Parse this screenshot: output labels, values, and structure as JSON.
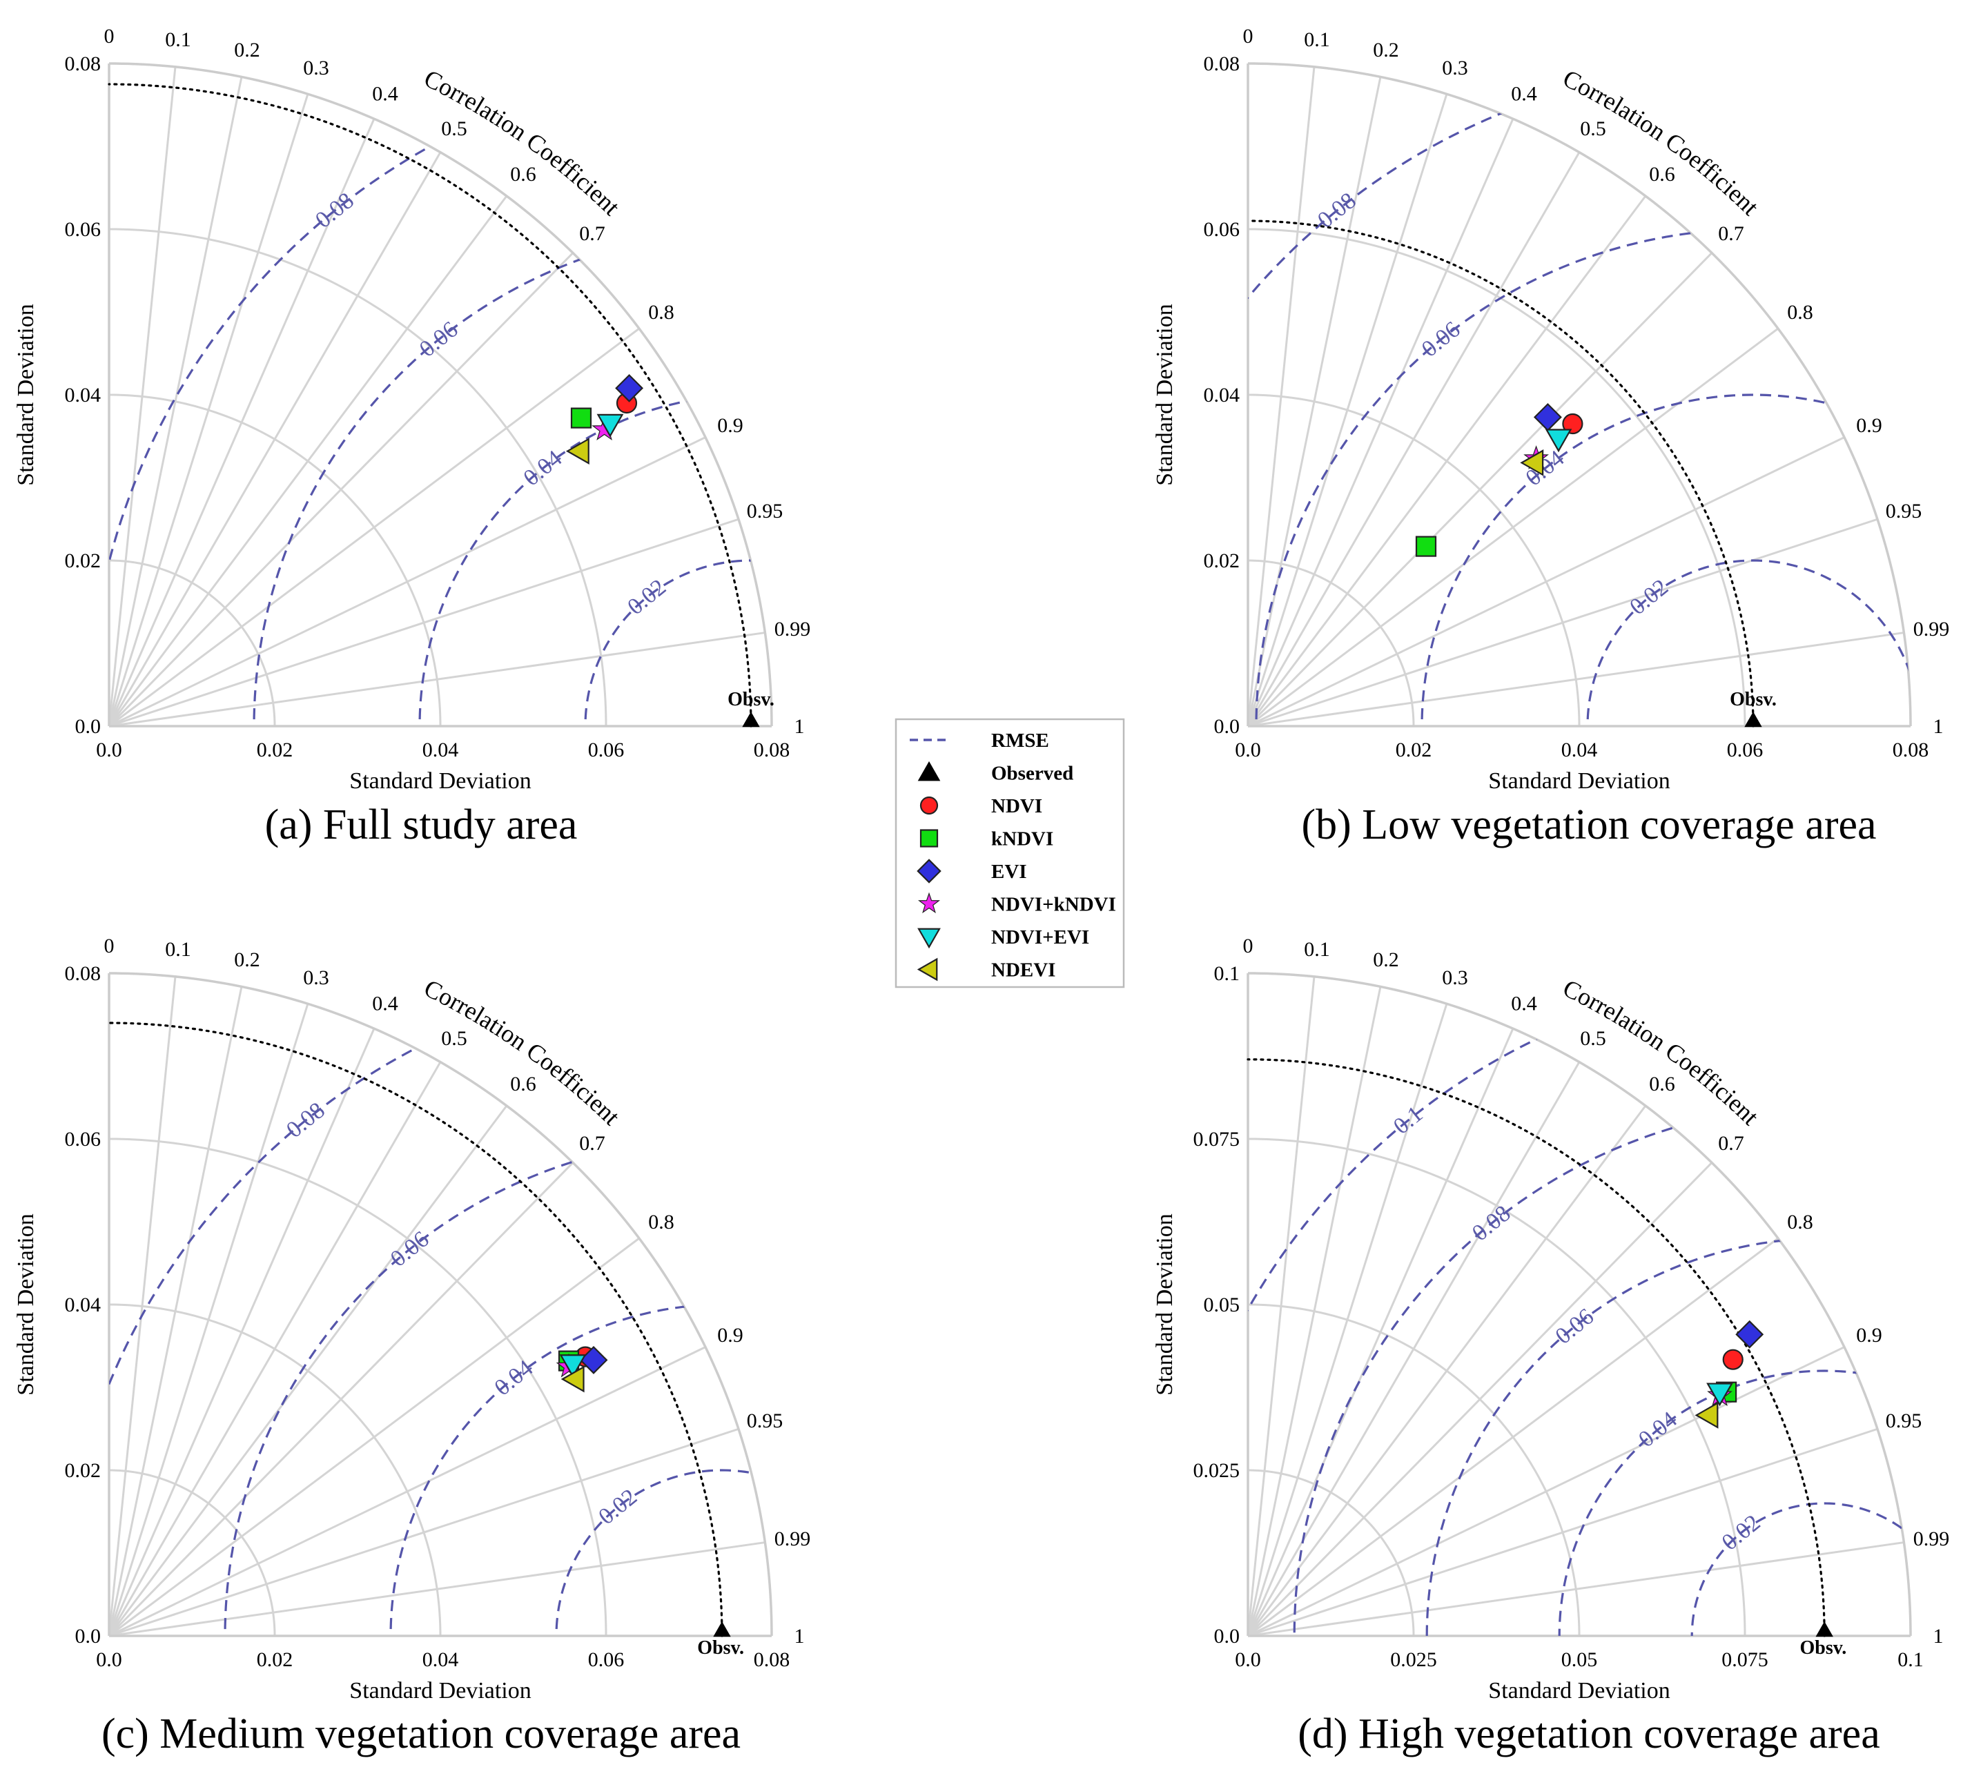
{
  "legend": {
    "items": [
      {
        "label": "RMSE",
        "kind": "line",
        "color": "#5555aa"
      },
      {
        "label": "Observed",
        "kind": "triangle-up",
        "color": "#000000"
      },
      {
        "label": "NDVI",
        "kind": "circle",
        "color": "#ff2020"
      },
      {
        "label": "kNDVI",
        "kind": "square",
        "color": "#11dd11"
      },
      {
        "label": "EVI",
        "kind": "diamond",
        "color": "#3030dd"
      },
      {
        "label": "NDVI+kNDVI",
        "kind": "star",
        "color": "#ee22ee"
      },
      {
        "label": "NDVI+EVI",
        "kind": "triangle-down",
        "color": "#11dddd"
      },
      {
        "label": "NDEVI",
        "kind": "triangle-left",
        "color": "#cccc11"
      }
    ]
  },
  "colors": {
    "rmse": "#5555aa",
    "grid": "#d4d4d4",
    "frame": "#cccccc",
    "observed_arc": "#000000"
  },
  "chart_data": [
    {
      "type": "taylor",
      "title": "(a) Full study area",
      "xlabel": "Standard Deviation",
      "ylabel": "Standard Deviation",
      "corr_label": "Correlation Coefficient",
      "max_sd": 0.08,
      "sd_ticks": [
        0.0,
        0.02,
        0.04,
        0.06,
        0.08
      ],
      "sd_tick_labels": [
        "0.0",
        "0.02",
        "0.04",
        "0.06",
        "0.08"
      ],
      "corr_ticks": [
        0,
        0.1,
        0.2,
        0.3,
        0.4,
        0.5,
        0.6,
        0.7,
        0.8,
        0.9,
        0.95,
        0.99,
        1
      ],
      "corr_tick_labels": [
        "0",
        "0.1",
        "0.2",
        "0.3",
        "0.4",
        "0.5",
        "0.6",
        "0.7",
        "0.8",
        "0.9",
        "0.95",
        "0.99",
        "1"
      ],
      "obs_sd": 0.0775,
      "obs_label": "Obsv.",
      "rmse_contours": [
        0.02,
        0.04,
        0.06,
        0.08
      ],
      "rmse_labels": [
        "0.02",
        "0.04",
        "0.06",
        "0.08"
      ],
      "points": [
        {
          "name": "NDVI",
          "x": 0.0625,
          "y": 0.039
        },
        {
          "name": "kNDVI",
          "x": 0.057,
          "y": 0.0372
        },
        {
          "name": "EVI",
          "x": 0.0628,
          "y": 0.0408
        },
        {
          "name": "NDVI+kNDVI",
          "x": 0.0598,
          "y": 0.0358
        },
        {
          "name": "NDVI+EVI",
          "x": 0.0605,
          "y": 0.0365
        },
        {
          "name": "NDEVI",
          "x": 0.0568,
          "y": 0.0332
        }
      ]
    },
    {
      "type": "taylor",
      "title": "(b) Low vegetation coverage area",
      "xlabel": "Standard Deviation",
      "ylabel": "Standard Deviation",
      "corr_label": "Correlation Coefficient",
      "max_sd": 0.08,
      "sd_ticks": [
        0.0,
        0.02,
        0.04,
        0.06,
        0.08
      ],
      "sd_tick_labels": [
        "0.0",
        "0.02",
        "0.04",
        "0.06",
        "0.08"
      ],
      "corr_ticks": [
        0,
        0.1,
        0.2,
        0.3,
        0.4,
        0.5,
        0.6,
        0.7,
        0.8,
        0.9,
        0.95,
        0.99,
        1
      ],
      "corr_tick_labels": [
        "0",
        "0.1",
        "0.2",
        "0.3",
        "0.4",
        "0.5",
        "0.6",
        "0.7",
        "0.8",
        "0.9",
        "0.95",
        "0.99",
        "1"
      ],
      "obs_sd": 0.061,
      "obs_label": "Obsv.",
      "rmse_contours": [
        0.02,
        0.04,
        0.06,
        0.08
      ],
      "rmse_labels": [
        "0.02",
        "0.04",
        "0.06",
        "0.08"
      ],
      "points": [
        {
          "name": "NDVI",
          "x": 0.0392,
          "y": 0.0365
        },
        {
          "name": "kNDVI",
          "x": 0.0215,
          "y": 0.0217
        },
        {
          "name": "EVI",
          "x": 0.0362,
          "y": 0.0373
        },
        {
          "name": "NDVI+kNDVI",
          "x": 0.0348,
          "y": 0.0323
        },
        {
          "name": "NDVI+EVI",
          "x": 0.0375,
          "y": 0.0347
        },
        {
          "name": "NDEVI",
          "x": 0.0345,
          "y": 0.0318
        }
      ]
    },
    {
      "type": "taylor",
      "title": "(c) Medium vegetation coverage area",
      "xlabel": "Standard Deviation",
      "ylabel": "Standard Deviation",
      "corr_label": "Correlation Coefficient",
      "max_sd": 0.08,
      "sd_ticks": [
        0.0,
        0.02,
        0.04,
        0.06,
        0.08
      ],
      "sd_tick_labels": [
        "0.0",
        "0.02",
        "0.04",
        "0.06",
        "0.08"
      ],
      "corr_ticks": [
        0,
        0.1,
        0.2,
        0.3,
        0.4,
        0.5,
        0.6,
        0.7,
        0.8,
        0.9,
        0.95,
        0.99,
        1
      ],
      "corr_tick_labels": [
        "0",
        "0.1",
        "0.2",
        "0.3",
        "0.4",
        "0.5",
        "0.6",
        "0.7",
        "0.8",
        "0.9",
        "0.95",
        "0.99",
        "1"
      ],
      "obs_sd": 0.074,
      "obs_label": "Obsv.",
      "rmse_contours": [
        0.02,
        0.04,
        0.06,
        0.08
      ],
      "rmse_labels": [
        "0.02",
        "0.04",
        "0.06",
        "0.08"
      ],
      "points": [
        {
          "name": "NDVI",
          "x": 0.0575,
          "y": 0.0337
        },
        {
          "name": "kNDVI",
          "x": 0.0555,
          "y": 0.0332
        },
        {
          "name": "EVI",
          "x": 0.0585,
          "y": 0.0333
        },
        {
          "name": "NDVI+kNDVI",
          "x": 0.0555,
          "y": 0.0325
        },
        {
          "name": "NDVI+EVI",
          "x": 0.056,
          "y": 0.0328
        },
        {
          "name": "NDEVI",
          "x": 0.0562,
          "y": 0.031
        }
      ]
    },
    {
      "type": "taylor",
      "title": "(d) High vegetation coverage area",
      "xlabel": "Standard Deviation",
      "ylabel": "Standard Deviation",
      "corr_label": "Correlation Coefficient",
      "max_sd": 0.1,
      "sd_ticks": [
        0.0,
        0.025,
        0.05,
        0.075,
        0.1
      ],
      "sd_tick_labels": [
        "0.0",
        "0.025",
        "0.05",
        "0.075",
        "0.1"
      ],
      "corr_ticks": [
        0,
        0.1,
        0.2,
        0.3,
        0.4,
        0.5,
        0.6,
        0.7,
        0.8,
        0.9,
        0.95,
        0.99,
        1
      ],
      "corr_tick_labels": [
        "0",
        "0.1",
        "0.2",
        "0.3",
        "0.4",
        "0.5",
        "0.6",
        "0.7",
        "0.8",
        "0.9",
        "0.95",
        "0.99",
        "1"
      ],
      "obs_sd": 0.087,
      "obs_label": "Obsv.",
      "rmse_contours": [
        0.02,
        0.04,
        0.06,
        0.08,
        0.1
      ],
      "rmse_labels": [
        "0.02",
        "0.04",
        "0.06",
        "0.08",
        "0.1"
      ],
      "points": [
        {
          "name": "NDVI",
          "x": 0.0732,
          "y": 0.0417
        },
        {
          "name": "kNDVI",
          "x": 0.0722,
          "y": 0.0368
        },
        {
          "name": "EVI",
          "x": 0.0757,
          "y": 0.0455
        },
        {
          "name": "NDVI+kNDVI",
          "x": 0.0712,
          "y": 0.0363
        },
        {
          "name": "NDVI+EVI",
          "x": 0.0712,
          "y": 0.0367
        },
        {
          "name": "NDEVI",
          "x": 0.0695,
          "y": 0.0333
        }
      ]
    }
  ]
}
